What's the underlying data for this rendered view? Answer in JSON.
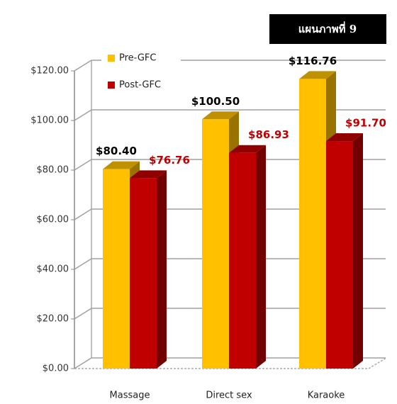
{
  "chart_data": {
    "type": "bar3d",
    "title": "แผนภาพที่ 9",
    "categories": [
      "Massage",
      "Direct sex",
      "Karaoke"
    ],
    "series": [
      {
        "name": "Pre-GFC",
        "color": "#FFC000",
        "values": [
          80.4,
          100.5,
          116.76
        ],
        "value_labels": [
          "$80.40",
          "$100.50",
          "$116.76"
        ]
      },
      {
        "name": "Post-GFC",
        "color": "#C00000",
        "values": [
          76.76,
          86.93,
          91.7
        ],
        "value_labels": [
          "$76.76",
          "$86.93",
          "$91.70"
        ]
      }
    ],
    "ylim": [
      0,
      120
    ],
    "yticks": [
      {
        "value": 0,
        "label": "$0.00"
      },
      {
        "value": 20,
        "label": "$20.00"
      },
      {
        "value": 40,
        "label": "$40.00"
      },
      {
        "value": 60,
        "label": "$60.00"
      },
      {
        "value": 80,
        "label": "$80.00"
      },
      {
        "value": 100,
        "label": "$100.00"
      },
      {
        "value": 120,
        "label": "$120.00"
      }
    ],
    "grid": true,
    "legend": "upper left"
  }
}
